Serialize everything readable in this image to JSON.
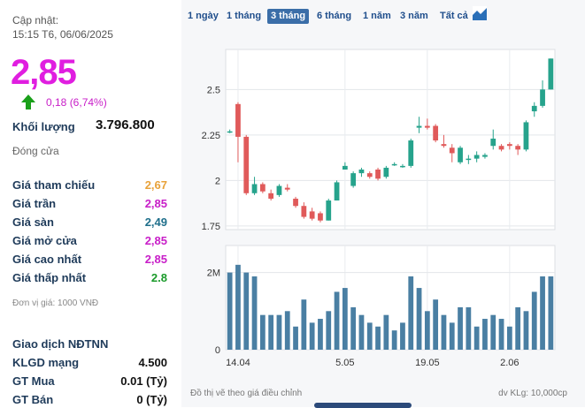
{
  "update": {
    "label": "Cập nhật:",
    "time": "15:15 T6, 06/06/2025"
  },
  "price": {
    "current": "2,85",
    "change": "0,18 (6,74%)"
  },
  "volume": {
    "label": "Khối lượng",
    "value": "3.796.800"
  },
  "status": "Đóng cửa",
  "stats": [
    {
      "label": "Giá tham chiếu",
      "value": "2,67",
      "color": "#e8a23a"
    },
    {
      "label": "Giá trần",
      "value": "2,85",
      "color": "#c81ec8"
    },
    {
      "label": "Giá sàn",
      "value": "2,49",
      "color": "#1f6f8b"
    },
    {
      "label": "Giá mở cửa",
      "value": "2,85",
      "color": "#c81ec8"
    },
    {
      "label": "Giá cao nhất",
      "value": "2,85",
      "color": "#c81ec8"
    },
    {
      "label": "Giá thấp nhất",
      "value": "2.8",
      "color": "#1a9a2a"
    }
  ],
  "unit_note": "Đơn vị giá: 1000 VNĐ",
  "foreign": {
    "title": "Giao dịch NĐTNN",
    "rows": [
      {
        "label": "KLGD mạng",
        "value": "4.500"
      },
      {
        "label": "GT Mua",
        "value": "0.01 (Tỷ)"
      },
      {
        "label": "GT Bán",
        "value": "0 (Tỷ)"
      }
    ]
  },
  "ranges": [
    "1 ngày",
    "1 tháng",
    "3 tháng",
    "6 tháng",
    "1 năm",
    "3 năm",
    "Tất cả"
  ],
  "active_range": "3 tháng",
  "icons": {
    "up": "up-arrow-icon",
    "chart": "area-chart-icon"
  },
  "footer": {
    "left": "Đồ thị vẽ theo giá điều chỉnh",
    "right": "dv KLg: 10,000cp"
  },
  "chart_data": {
    "type": "candlestick",
    "y_ticks": [
      "2.5",
      "2.25",
      "2",
      "1.75"
    ],
    "ylim": [
      1.73,
      2.72
    ],
    "x_ticks": [
      {
        "label": "14.04",
        "index": 1
      },
      {
        "label": "5.05",
        "index": 14
      },
      {
        "label": "19.05",
        "index": 24
      },
      {
        "label": "2.06",
        "index": 34
      }
    ],
    "volume_ticks": [
      "2M",
      "0"
    ],
    "volume_max": 2.7,
    "candles": [
      [
        2.27,
        2.28,
        2.26,
        2.27,
        2.0
      ],
      [
        2.42,
        2.43,
        2.1,
        2.24,
        2.2
      ],
      [
        2.24,
        2.25,
        1.92,
        1.93,
        2.0
      ],
      [
        1.93,
        2.02,
        1.92,
        1.98,
        1.9
      ],
      [
        1.98,
        1.99,
        1.93,
        1.94,
        0.9
      ],
      [
        1.93,
        1.95,
        1.89,
        1.9,
        0.9
      ],
      [
        1.92,
        1.98,
        1.91,
        1.97,
        0.9
      ],
      [
        1.96,
        1.98,
        1.94,
        1.95,
        1.0
      ],
      [
        1.9,
        1.91,
        1.85,
        1.86,
        0.6
      ],
      [
        1.86,
        1.88,
        1.79,
        1.8,
        1.3
      ],
      [
        1.83,
        1.85,
        1.78,
        1.79,
        0.7
      ],
      [
        1.82,
        1.83,
        1.77,
        1.78,
        0.8
      ],
      [
        1.78,
        1.9,
        1.78,
        1.89,
        1.0
      ],
      [
        1.89,
        2.0,
        1.89,
        1.99,
        1.5
      ],
      [
        2.06,
        2.1,
        2.06,
        2.08,
        1.6
      ],
      [
        1.97,
        2.05,
        1.96,
        2.04,
        1.1
      ],
      [
        2.04,
        2.07,
        2.02,
        2.06,
        0.9
      ],
      [
        2.04,
        2.05,
        2.01,
        2.02,
        0.7
      ],
      [
        2.06,
        2.07,
        2.0,
        2.01,
        0.6
      ],
      [
        2.02,
        2.08,
        2.01,
        2.07,
        0.9
      ],
      [
        2.09,
        2.1,
        2.08,
        2.09,
        0.5
      ],
      [
        2.08,
        2.09,
        2.07,
        2.08,
        0.7
      ],
      [
        2.08,
        2.23,
        2.07,
        2.22,
        1.9
      ],
      [
        2.29,
        2.35,
        2.26,
        2.3,
        1.6
      ],
      [
        2.3,
        2.34,
        2.28,
        2.29,
        1.0
      ],
      [
        2.3,
        2.31,
        2.21,
        2.22,
        1.3
      ],
      [
        2.2,
        2.25,
        2.18,
        2.19,
        0.9
      ],
      [
        2.18,
        2.2,
        2.1,
        2.15,
        0.7
      ],
      [
        2.1,
        2.19,
        2.09,
        2.18,
        1.1
      ],
      [
        2.12,
        2.14,
        2.09,
        2.12,
        1.1
      ],
      [
        2.12,
        2.16,
        2.1,
        2.14,
        0.6
      ],
      [
        2.13,
        2.15,
        2.12,
        2.14,
        0.8
      ],
      [
        2.19,
        2.28,
        2.17,
        2.23,
        0.9
      ],
      [
        2.19,
        2.2,
        2.16,
        2.17,
        0.8
      ],
      [
        2.2,
        2.21,
        2.17,
        2.19,
        0.6
      ],
      [
        2.19,
        2.2,
        2.14,
        2.17,
        1.1
      ],
      [
        2.17,
        2.33,
        2.16,
        2.32,
        1.0
      ],
      [
        2.38,
        2.43,
        2.35,
        2.41,
        1.5
      ],
      [
        2.41,
        2.55,
        2.4,
        2.5,
        1.9
      ],
      [
        2.5,
        2.67,
        2.5,
        2.67,
        1.9
      ]
    ]
  }
}
